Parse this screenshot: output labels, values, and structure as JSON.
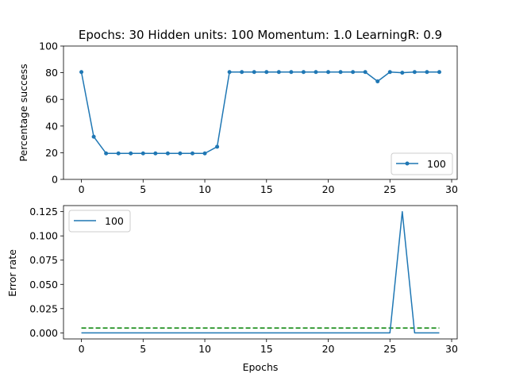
{
  "chart_data": [
    {
      "type": "line",
      "title": "Epochs: 30 Hidden units: 100 Momentum: 1.0 LearningR: 0.9",
      "xlabel": "",
      "ylabel": "Percentage success",
      "xlim": [
        -1.45,
        30.45
      ],
      "ylim": [
        0,
        100
      ],
      "xticks": [
        "0",
        "5",
        "10",
        "15",
        "20",
        "25",
        "30"
      ],
      "yticks": [
        "0",
        "20",
        "40",
        "60",
        "80",
        "100"
      ],
      "legend": "lower right",
      "series": [
        {
          "name": "100",
          "color": "#1f77b4",
          "marker": "dot",
          "x": [
            0,
            1,
            2,
            3,
            4,
            5,
            6,
            7,
            8,
            9,
            10,
            11,
            12,
            13,
            14,
            15,
            16,
            17,
            18,
            19,
            20,
            21,
            22,
            23,
            24,
            25,
            26,
            27,
            28,
            29
          ],
          "values": [
            80.5,
            32,
            19.5,
            19.5,
            19.5,
            19.5,
            19.5,
            19.5,
            19.5,
            19.5,
            19.5,
            24.5,
            80.5,
            80.5,
            80.5,
            80.5,
            80.5,
            80.5,
            80.5,
            80.5,
            80.5,
            80.5,
            80.5,
            80.5,
            73.5,
            80.5,
            80,
            80.5,
            80.5,
            80.5
          ]
        }
      ]
    },
    {
      "type": "line",
      "title": "",
      "xlabel": "Epochs",
      "ylabel": "Error rate",
      "xlim": [
        -1.45,
        30.45
      ],
      "ylim": [
        -0.00625,
        0.13125
      ],
      "xticks": [
        "0",
        "5",
        "10",
        "15",
        "20",
        "25",
        "30"
      ],
      "yticks": [
        "0.000",
        "0.025",
        "0.050",
        "0.075",
        "0.100",
        "0.125"
      ],
      "legend": "upper left",
      "series": [
        {
          "name": "100",
          "color": "#1f77b4",
          "marker": "none",
          "x": [
            0,
            1,
            2,
            3,
            4,
            5,
            6,
            7,
            8,
            9,
            10,
            11,
            12,
            13,
            14,
            15,
            16,
            17,
            18,
            19,
            20,
            21,
            22,
            23,
            24,
            25,
            26,
            27,
            28,
            29
          ],
          "values": [
            0,
            0,
            0,
            0,
            0,
            0,
            0,
            0,
            0,
            0,
            0,
            0,
            0,
            0,
            0,
            0,
            0,
            0,
            0,
            0,
            0,
            0,
            0,
            0,
            0,
            0,
            0.125,
            0,
            0,
            0
          ]
        }
      ],
      "reference_line": {
        "y": 0.005,
        "x_from": 0,
        "x_to": 29,
        "color": "#008000",
        "style": "dashed"
      }
    }
  ]
}
